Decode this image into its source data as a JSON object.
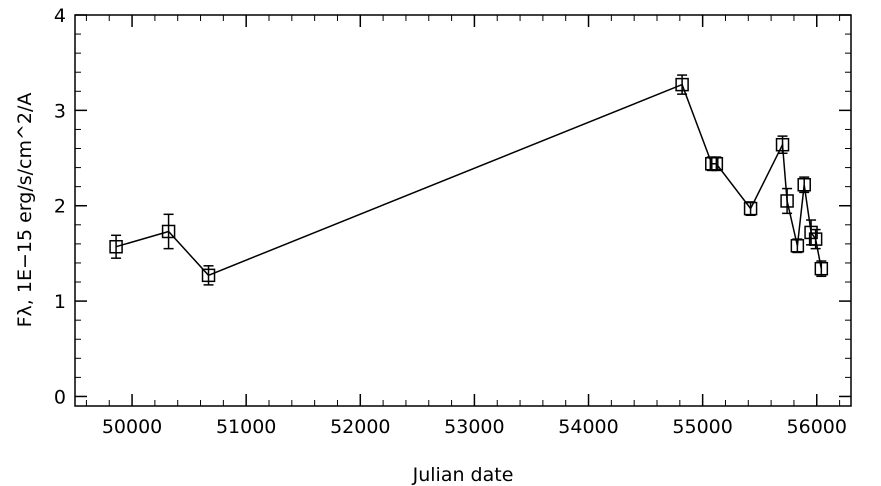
{
  "chart_data": {
    "type": "line",
    "title": "",
    "xlabel": "Julian date",
    "ylabel": "Fλ, 1E−15 erg/s/cm^2/A",
    "xlim": [
      49500,
      56300
    ],
    "ylim": [
      -0.1,
      4.0
    ],
    "x_ticks": [
      50000,
      51000,
      52000,
      53000,
      54000,
      55000,
      56000
    ],
    "y_ticks": [
      0,
      1,
      2,
      3,
      4
    ],
    "x_minor_step": 200,
    "y_minor_step": 0.2,
    "grid": false,
    "legend": "none",
    "marker": "open-square",
    "line_color": "#000000",
    "series": [
      {
        "points": [
          {
            "x": 49860,
            "y": 1.57,
            "err": 0.12
          },
          {
            "x": 50320,
            "y": 1.73,
            "err": 0.18
          },
          {
            "x": 50670,
            "y": 1.27,
            "err": 0.1
          },
          {
            "x": 54820,
            "y": 3.27,
            "err": 0.1
          },
          {
            "x": 55080,
            "y": 2.44,
            "err": 0.07
          },
          {
            "x": 55120,
            "y": 2.44,
            "err": 0.07
          },
          {
            "x": 55420,
            "y": 1.97,
            "err": 0.07
          },
          {
            "x": 55700,
            "y": 2.64,
            "err": 0.09
          },
          {
            "x": 55740,
            "y": 2.05,
            "err": 0.13
          },
          {
            "x": 55830,
            "y": 1.58,
            "err": 0.07
          },
          {
            "x": 55890,
            "y": 2.22,
            "err": 0.08
          },
          {
            "x": 55950,
            "y": 1.72,
            "err": 0.13
          },
          {
            "x": 55990,
            "y": 1.65,
            "err": 0.1
          },
          {
            "x": 56040,
            "y": 1.34,
            "err": 0.08
          }
        ]
      }
    ]
  }
}
